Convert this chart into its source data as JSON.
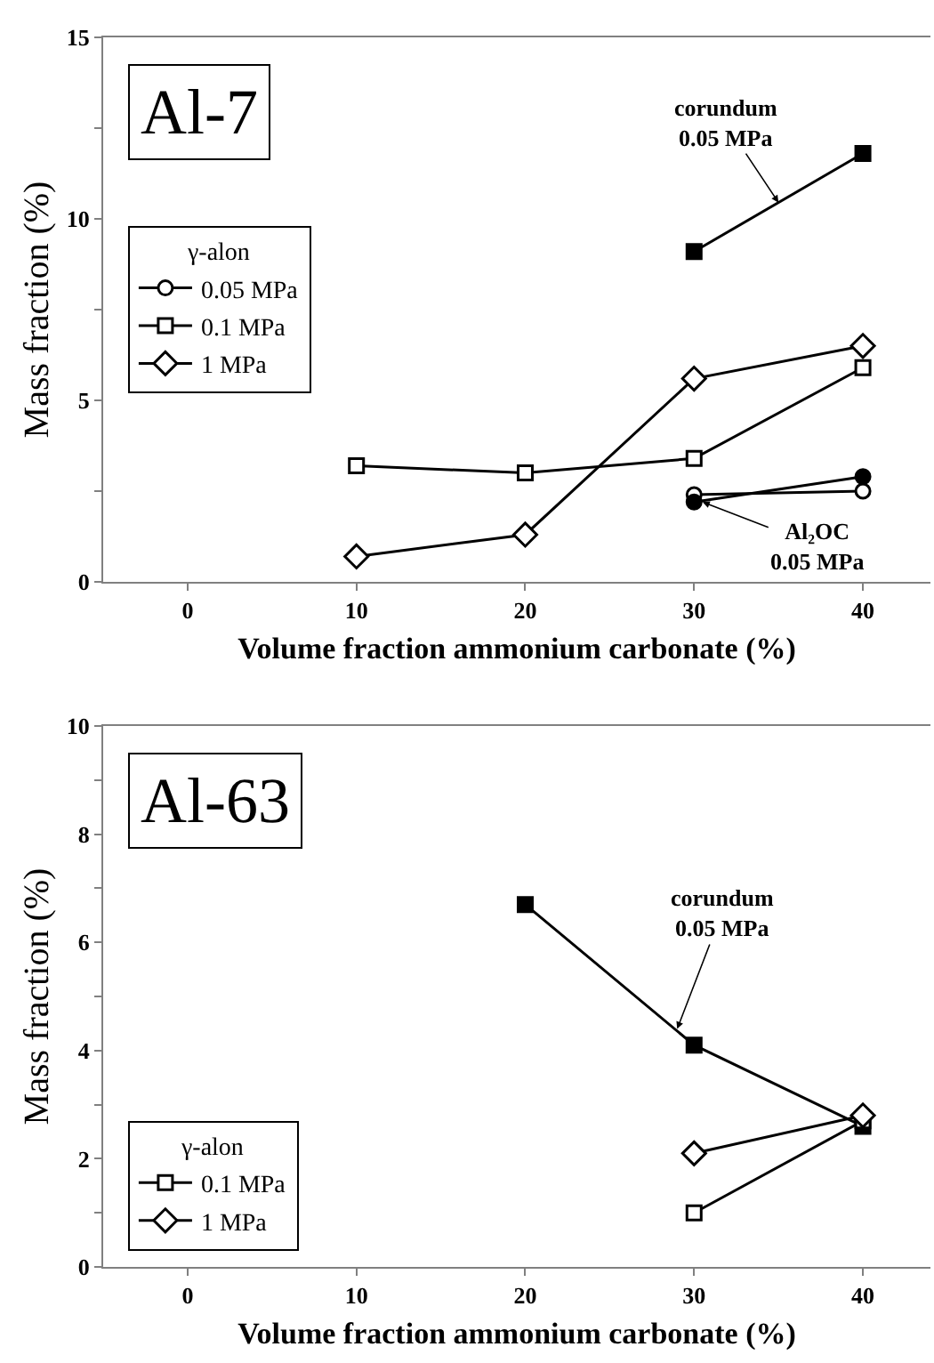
{
  "chart_data": [
    {
      "type": "line",
      "title": "Al-7",
      "xlabel": "Volume fraction ammonium carbonate (%)",
      "ylabel": "Mass fraction (%)",
      "legend_title": "γ-alon",
      "legend": "left",
      "xlim": [
        -5,
        44
      ],
      "xticks": [
        0,
        10,
        20,
        30,
        40
      ],
      "ylim": [
        0,
        15
      ],
      "yticks": [
        0,
        {
          "value": 2.5,
          "label": null
        },
        5,
        {
          "value": 7.5,
          "label": null
        },
        10,
        {
          "value": 12.5,
          "label": null
        },
        15
      ],
      "series": [
        {
          "name": "0.05 MPa",
          "color": "#000000",
          "marker": "circle",
          "x": [
            30,
            40
          ],
          "values": [
            2.4,
            2.5
          ]
        },
        {
          "name": "0.1 MPa",
          "color": "#000000",
          "marker": "square",
          "x": [
            10,
            20,
            30,
            40
          ],
          "values": [
            3.2,
            3.0,
            3.4,
            5.9
          ]
        },
        {
          "name": "1 MPa",
          "color": "#000000",
          "marker": "diamond",
          "x": [
            10,
            20,
            30,
            40
          ],
          "values": [
            0.7,
            1.3,
            5.6,
            6.5
          ]
        },
        {
          "color": "#000000",
          "marker": "square",
          "x": [
            30,
            40
          ],
          "values": [
            9.1,
            11.8
          ]
        },
        {
          "color": "#000000",
          "marker": "circle",
          "x": [
            30,
            40
          ],
          "values": [
            2.2,
            2.9
          ]
        }
      ],
      "annotations": [
        {
          "text": "corundum\n0.05 MPa",
          "x": 35,
          "y": 10.45
        },
        {
          "text": "Al₂OC\n0.05 MPa",
          "x": 30.5,
          "y": 2.2
        }
      ]
    },
    {
      "type": "line",
      "title": "Al-63",
      "xlabel": "Volume fraction ammonium carbonate (%)",
      "ylabel": "Mass fraction (%)",
      "legend_title": "γ-alon",
      "legend": "bottom left",
      "xlim": [
        -5,
        44
      ],
      "xticks": [
        0,
        10,
        20,
        30,
        40
      ],
      "ylim": [
        0,
        10
      ],
      "yticks": [
        0,
        {
          "value": 1,
          "label": null
        },
        2,
        {
          "value": 3,
          "label": null
        },
        4,
        {
          "value": 5,
          "label": null
        },
        6,
        {
          "value": 7,
          "label": null
        },
        8,
        {
          "value": 9,
          "label": null
        },
        10
      ],
      "series": [
        {
          "color": "#000000",
          "marker": "square",
          "x": [
            20,
            30,
            40
          ],
          "values": [
            6.7,
            4.1,
            2.6
          ]
        },
        {
          "name": "0.1 MPa",
          "color": "#000000",
          "marker": "square",
          "x": [
            30,
            40
          ],
          "values": [
            1.0,
            2.7
          ]
        },
        {
          "name": "1 MPa",
          "color": "#000000",
          "marker": "diamond",
          "x": [
            30,
            40
          ],
          "values": [
            2.1,
            2.8
          ]
        }
      ],
      "annotations": [
        {
          "text": "corundum\n0.05 MPa",
          "x": 29,
          "y": 4.4
        }
      ]
    }
  ]
}
